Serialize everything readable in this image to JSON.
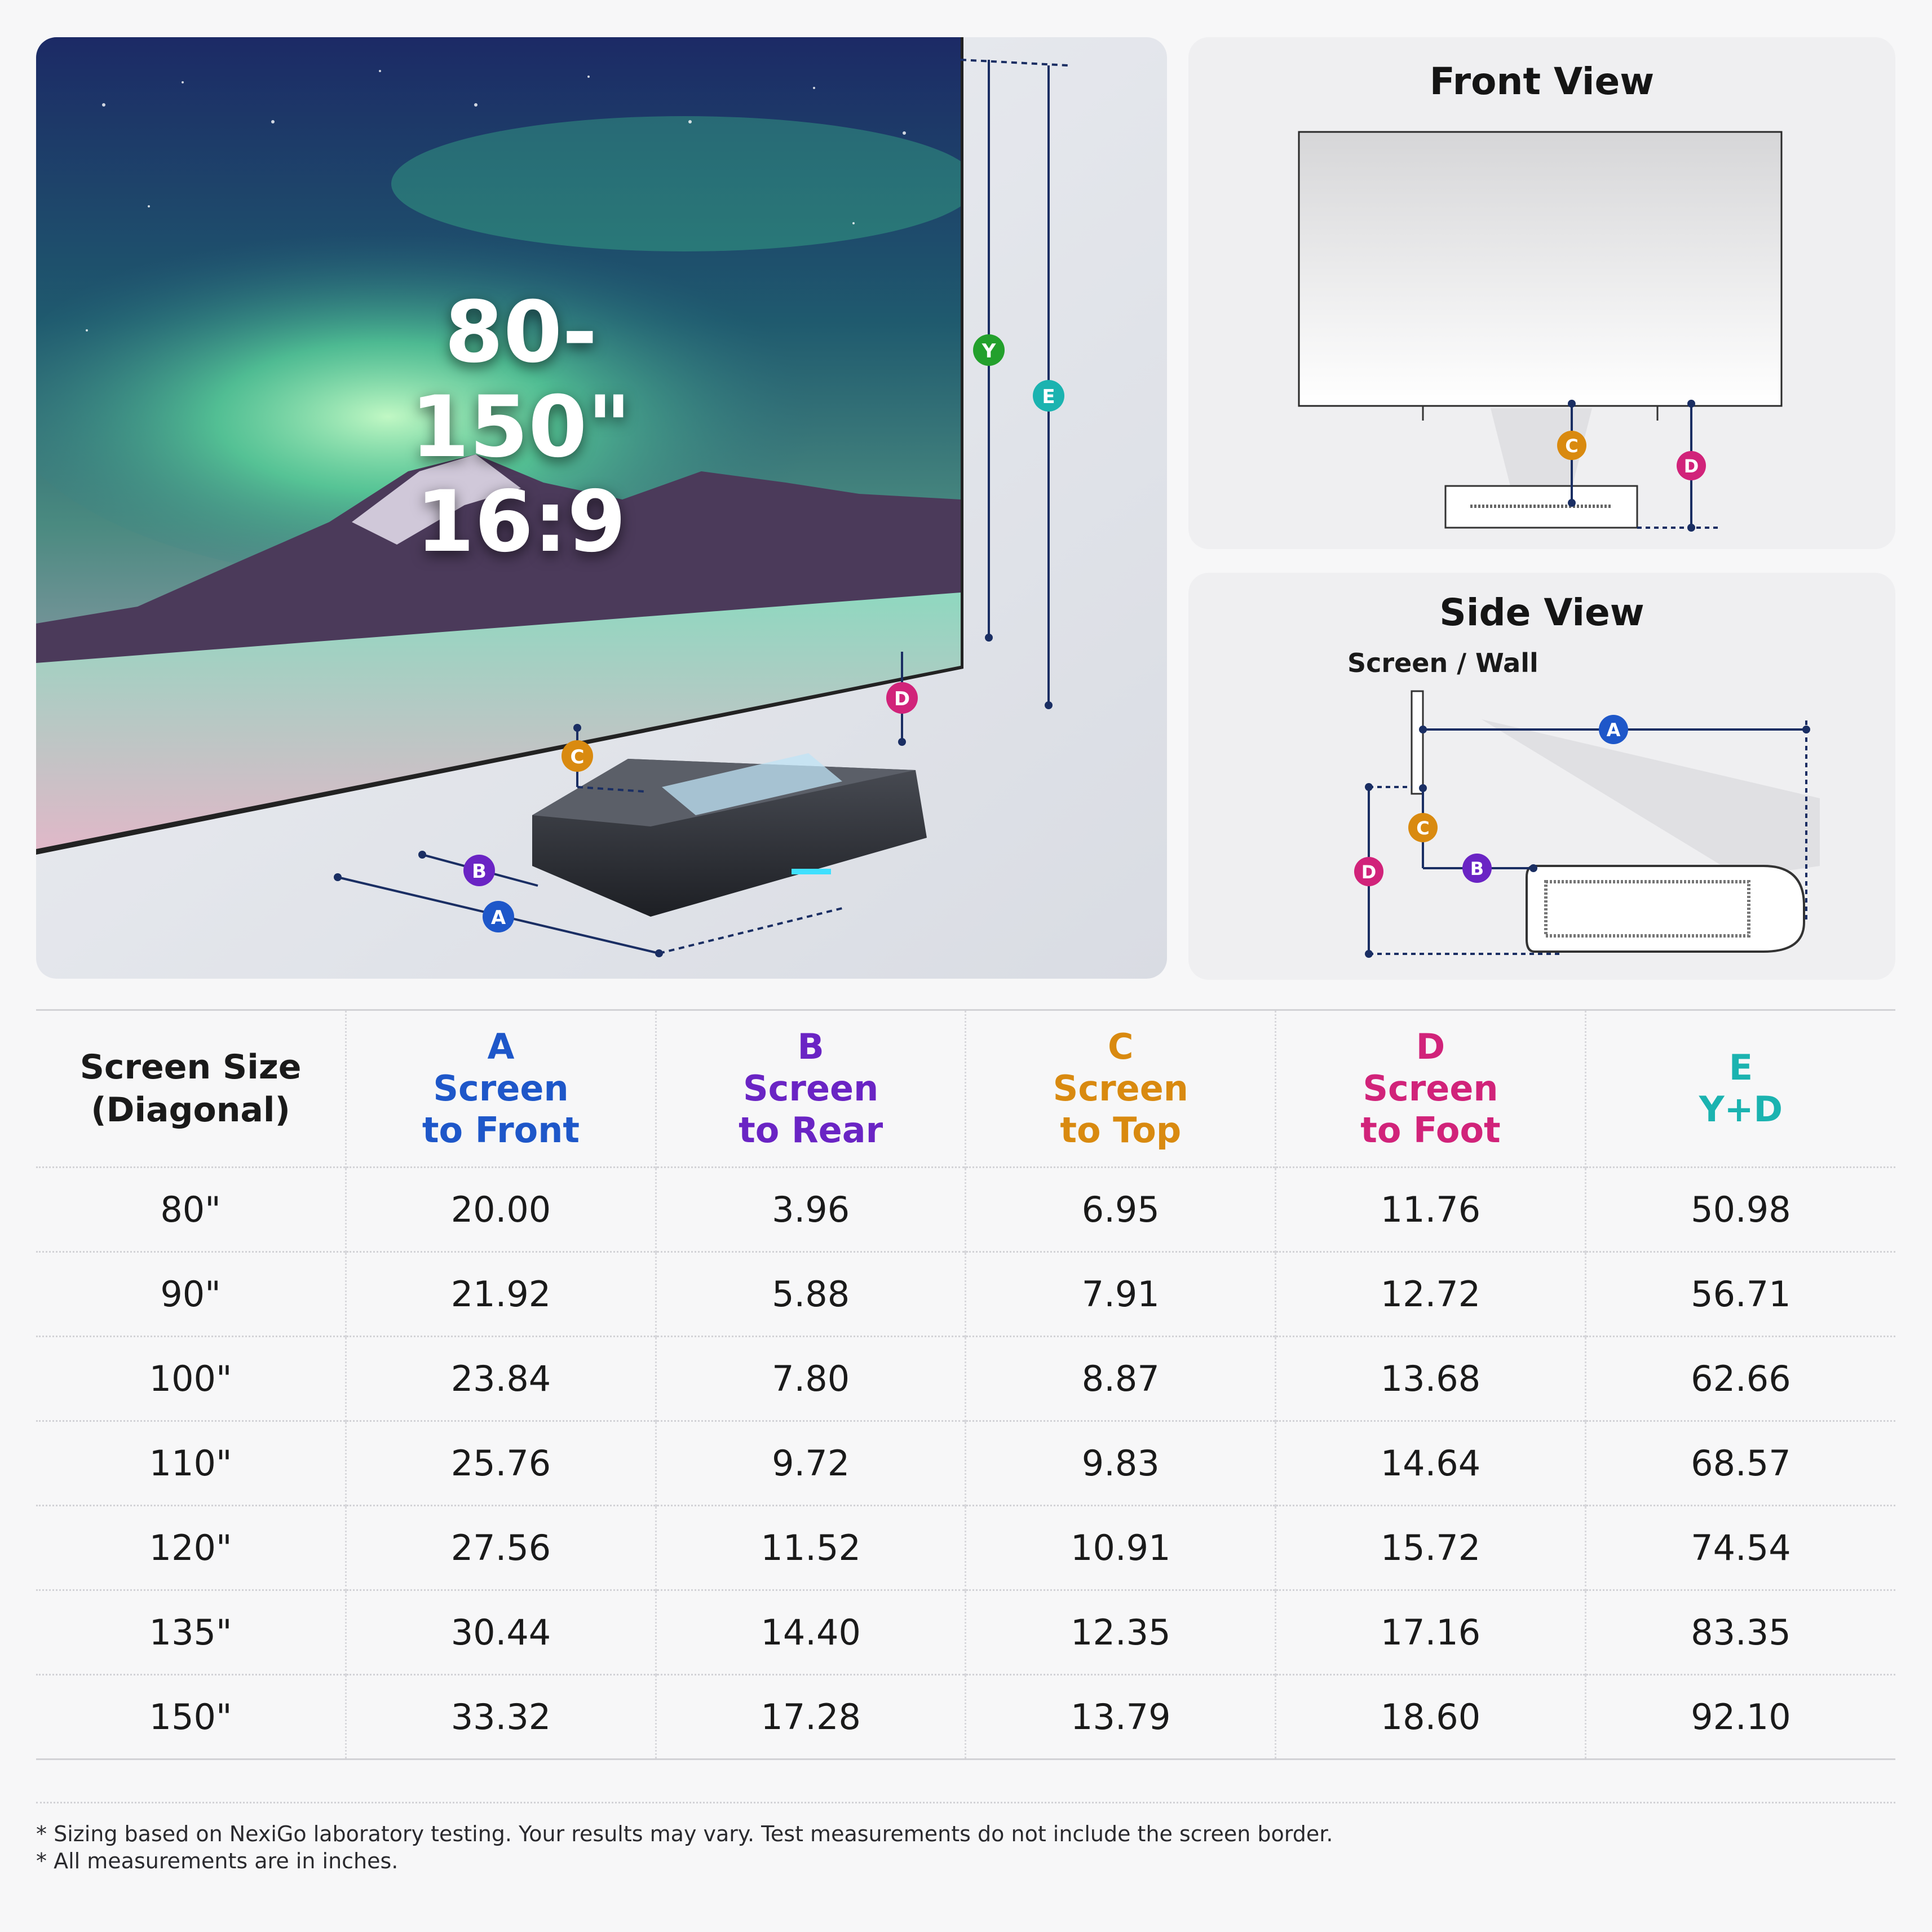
{
  "hero": {
    "size_text": "80-150\"",
    "ratio_text": "16:9",
    "markers": {
      "A": "A",
      "B": "B",
      "C": "C",
      "D": "D",
      "Y": "Y",
      "E": "E"
    }
  },
  "front_view": {
    "title": "Front View",
    "markers": {
      "C": "C",
      "D": "D"
    }
  },
  "side_view": {
    "title": "Side View",
    "wall_label": "Screen / Wall",
    "markers": {
      "A": "A",
      "B": "B",
      "C": "C",
      "D": "D"
    }
  },
  "colors": {
    "A": "#1e57c9",
    "B": "#6a24c4",
    "C": "#d98a10",
    "D": "#d1237a",
    "E": "#1bb3b0",
    "Y": "#23a02c",
    "line": "#1a2e63"
  },
  "table": {
    "size_header": [
      "Screen Size",
      "(Diagonal)"
    ],
    "columns": [
      {
        "letter": "A",
        "line1": "Screen",
        "line2": "to Front"
      },
      {
        "letter": "B",
        "line1": "Screen",
        "line2": "to Rear"
      },
      {
        "letter": "C",
        "line1": "Screen",
        "line2": "to Top"
      },
      {
        "letter": "D",
        "line1": "Screen",
        "line2": "to Foot"
      },
      {
        "letter": "E",
        "line1": "Y+D",
        "line2": ""
      }
    ],
    "rows": [
      [
        "80\"",
        "20.00",
        "3.96",
        "6.95",
        "11.76",
        "50.98"
      ],
      [
        "90\"",
        "21.92",
        "5.88",
        "7.91",
        "12.72",
        "56.71"
      ],
      [
        "100\"",
        "23.84",
        "7.80",
        "8.87",
        "13.68",
        "62.66"
      ],
      [
        "110\"",
        "25.76",
        "9.72",
        "9.83",
        "14.64",
        "68.57"
      ],
      [
        "120\"",
        "27.56",
        "11.52",
        "10.91",
        "15.72",
        "74.54"
      ],
      [
        "135\"",
        "30.44",
        "14.40",
        "12.35",
        "17.16",
        "83.35"
      ],
      [
        "150\"",
        "33.32",
        "17.28",
        "13.79",
        "18.60",
        "92.10"
      ]
    ]
  },
  "footnotes": [
    "* Sizing based on NexiGo laboratory testing. Your results may vary. Test measurements do not include the screen border.",
    "* All measurements are in inches."
  ]
}
